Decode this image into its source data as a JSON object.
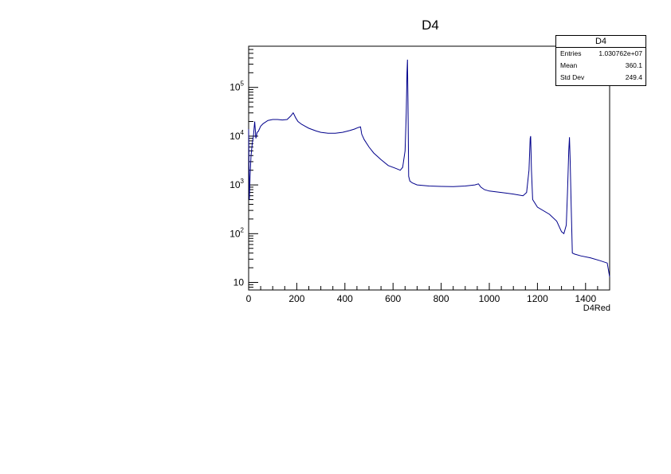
{
  "chart_data": {
    "type": "line",
    "title": "D4",
    "xlabel": "D4Red",
    "ylabel": "",
    "xlim": [
      0,
      1500
    ],
    "ylog": true,
    "ylim": [
      7,
      700000
    ],
    "xticks": [
      "0",
      "200",
      "400",
      "600",
      "800",
      "1000",
      "1200",
      "1400"
    ],
    "yticks": [
      {
        "mantissa": "10",
        "exp": "",
        "value": 10
      },
      {
        "mantissa": "10",
        "exp": "2",
        "value": 100
      },
      {
        "mantissa": "10",
        "exp": "3",
        "value": 1000
      },
      {
        "mantissa": "10",
        "exp": "4",
        "value": 10000
      },
      {
        "mantissa": "10",
        "exp": "5",
        "value": 100000
      }
    ],
    "line_color": "#00008b",
    "series": [
      {
        "x": [
          0,
          3,
          6,
          10,
          15,
          20,
          25,
          30,
          35,
          40,
          50,
          60,
          80,
          100,
          120,
          140,
          160,
          175,
          185,
          190,
          195,
          205,
          220,
          250,
          280,
          300,
          330,
          360,
          390,
          420,
          440,
          455,
          465,
          470,
          480,
          500,
          520,
          550,
          580,
          610,
          630,
          640,
          650,
          655,
          658,
          660,
          662,
          665,
          670,
          680,
          700,
          750,
          800,
          850,
          900,
          940,
          955,
          965,
          980,
          1000,
          1050,
          1100,
          1140,
          1155,
          1165,
          1170,
          1172,
          1175,
          1180,
          1200,
          1250,
          1280,
          1300,
          1310,
          1320,
          1325,
          1330,
          1333,
          1336,
          1340,
          1345,
          1355,
          1380,
          1420,
          1460,
          1490,
          1500
        ],
        "y": [
          14000,
          500,
          1500,
          4000,
          7000,
          10000,
          20000,
          9000,
          12000,
          12500,
          16000,
          18000,
          21000,
          22000,
          22000,
          21500,
          22000,
          26000,
          30000,
          27000,
          24000,
          20000,
          17500,
          14500,
          12800,
          12000,
          11500,
          11500,
          12000,
          13000,
          14000,
          15000,
          15500,
          11000,
          8500,
          6000,
          4500,
          3300,
          2500,
          2200,
          2000,
          2300,
          5000,
          30000,
          200000,
          370000,
          60000,
          1500,
          1200,
          1100,
          1000,
          950,
          930,
          920,
          950,
          1000,
          1050,
          900,
          800,
          750,
          700,
          650,
          600,
          700,
          2000,
          9000,
          10000,
          2000,
          500,
          350,
          250,
          180,
          110,
          100,
          150,
          700,
          5000,
          9500,
          3000,
          400,
          40,
          38,
          35,
          32,
          28,
          25,
          13
        ]
      }
    ],
    "stats": {
      "name": "D4",
      "rows": [
        {
          "label": "Entries",
          "value": "1.030762e+07"
        },
        {
          "label": "Mean",
          "value": "360.1"
        },
        {
          "label": "Std Dev",
          "value": "249.4"
        }
      ]
    }
  }
}
